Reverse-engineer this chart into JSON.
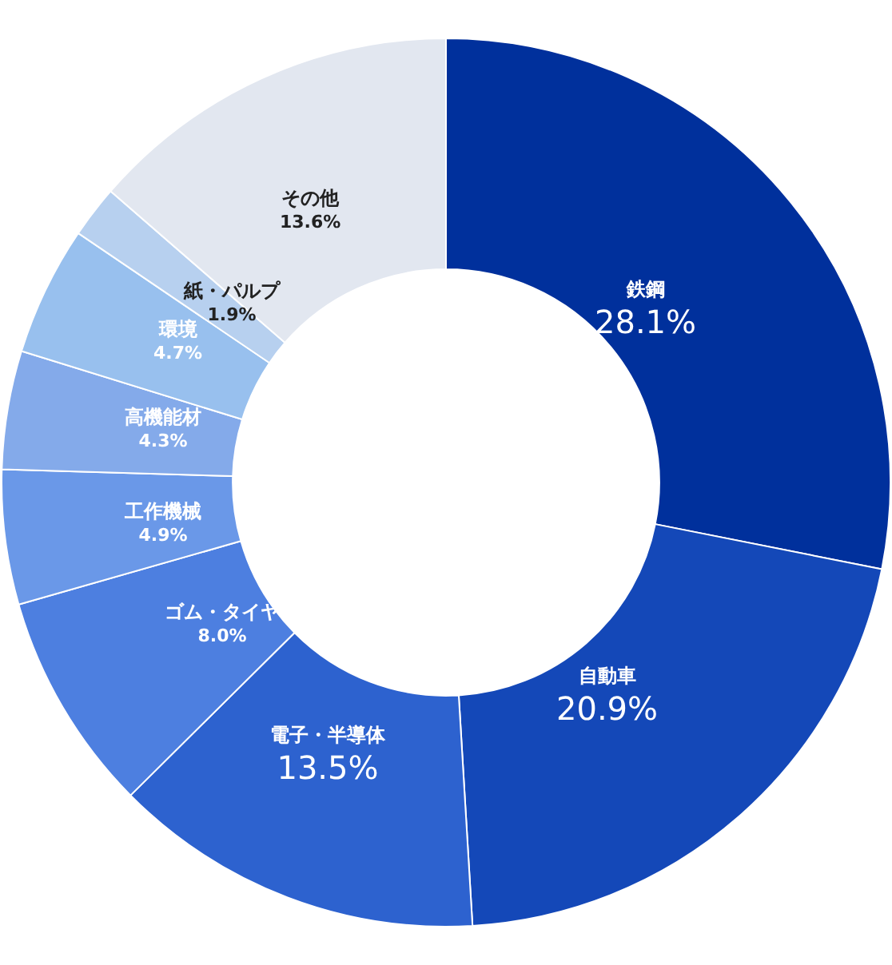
{
  "chart_data": {
    "type": "donut",
    "categories": [
      "鉄鋼",
      "自動車",
      "電子・半導体",
      "ゴム・タイヤ",
      "工作機械",
      "高機能材",
      "環境",
      "紙・パルプ",
      "その他"
    ],
    "values": [
      28.1,
      20.9,
      13.5,
      8.0,
      4.9,
      4.3,
      4.7,
      1.9,
      13.6
    ],
    "colors": [
      "#00309c",
      "#1448b8",
      "#2d62cf",
      "#4d7fe0",
      "#6a98e8",
      "#84aaea",
      "#98c0ee",
      "#b7d0ef",
      "#e2e7f0"
    ],
    "value_labels": [
      "28.1%",
      "20.9%",
      "13.5%",
      "8.0%",
      "4.9%",
      "4.3%",
      "4.7%",
      "1.9%",
      "13.6%"
    ],
    "legend": false
  }
}
